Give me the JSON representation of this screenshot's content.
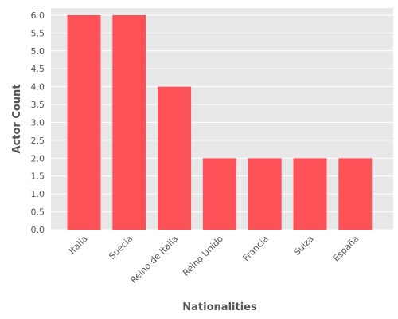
{
  "colors": {
    "bar": "#FF5258",
    "panel": "#E8E8E8",
    "grid": "#FFFFFF",
    "text": "#555555"
  },
  "chart_data": {
    "type": "bar",
    "title": "",
    "xlabel": "Nationalities",
    "ylabel": "Actor Count",
    "categories": [
      "Italia",
      "Suecia",
      "Reino de Italia",
      "Reino Unido",
      "Francia",
      "Suiza",
      "España"
    ],
    "values": [
      6,
      6,
      4,
      2,
      2,
      2,
      2
    ],
    "ylim": [
      0,
      6.2
    ],
    "yticks": [
      "0.0",
      "0.5",
      "1.0",
      "1.5",
      "2.0",
      "2.5",
      "3.0",
      "3.5",
      "4.0",
      "4.5",
      "5.0",
      "5.5",
      "6.0"
    ],
    "grid": true,
    "legend": "none"
  }
}
